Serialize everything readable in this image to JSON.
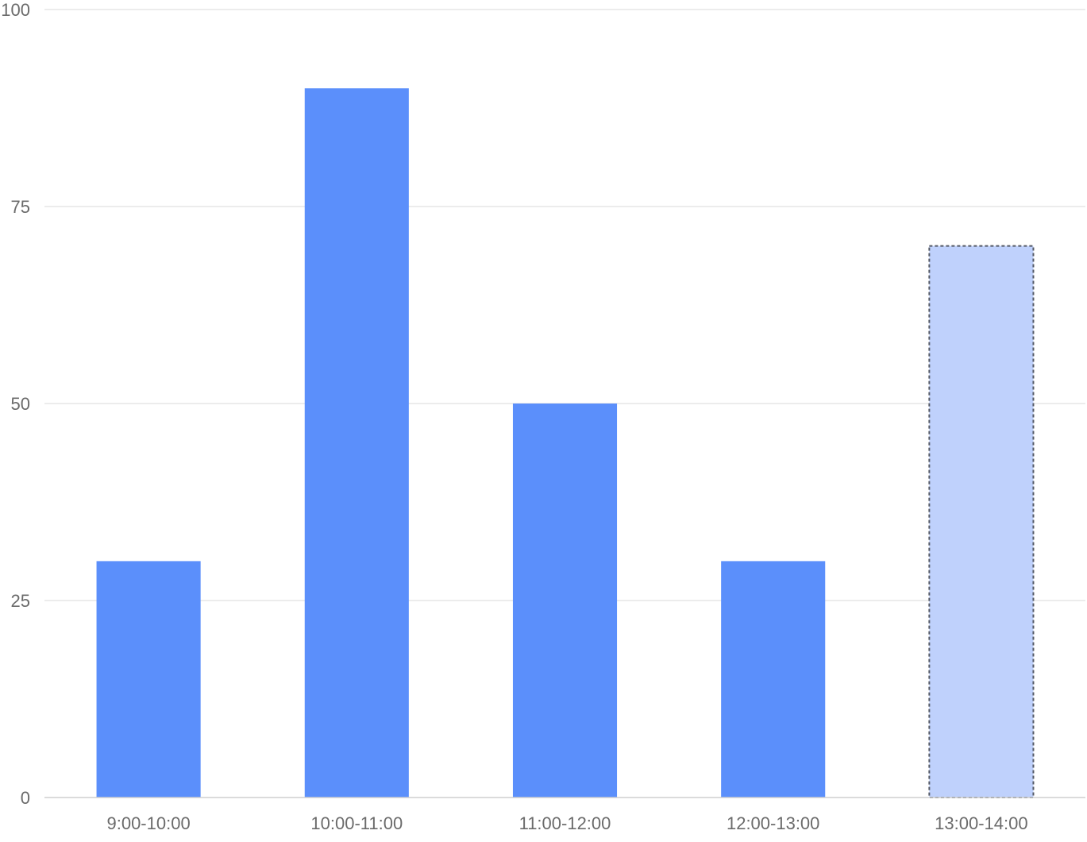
{
  "chart_data": {
    "type": "bar",
    "title": "",
    "xlabel": "",
    "ylabel": "",
    "categories": [
      "9:00-10:00",
      "10:00-11:00",
      "11:00-12:00",
      "12:00-13:00",
      "13:00-14:00"
    ],
    "values": [
      30,
      90,
      50,
      30,
      70
    ],
    "highlighted_index": 4,
    "ylim": [
      0,
      100
    ],
    "yticks": [
      0,
      25,
      50,
      75,
      100
    ],
    "grid": true,
    "colors": {
      "bar": "#5b8ffb",
      "bar_highlight_fill": "#bfd1fc",
      "bar_highlight_stroke": "#555a66",
      "grid": "#e6e6e6",
      "tick_text": "#6b6b6b"
    }
  }
}
